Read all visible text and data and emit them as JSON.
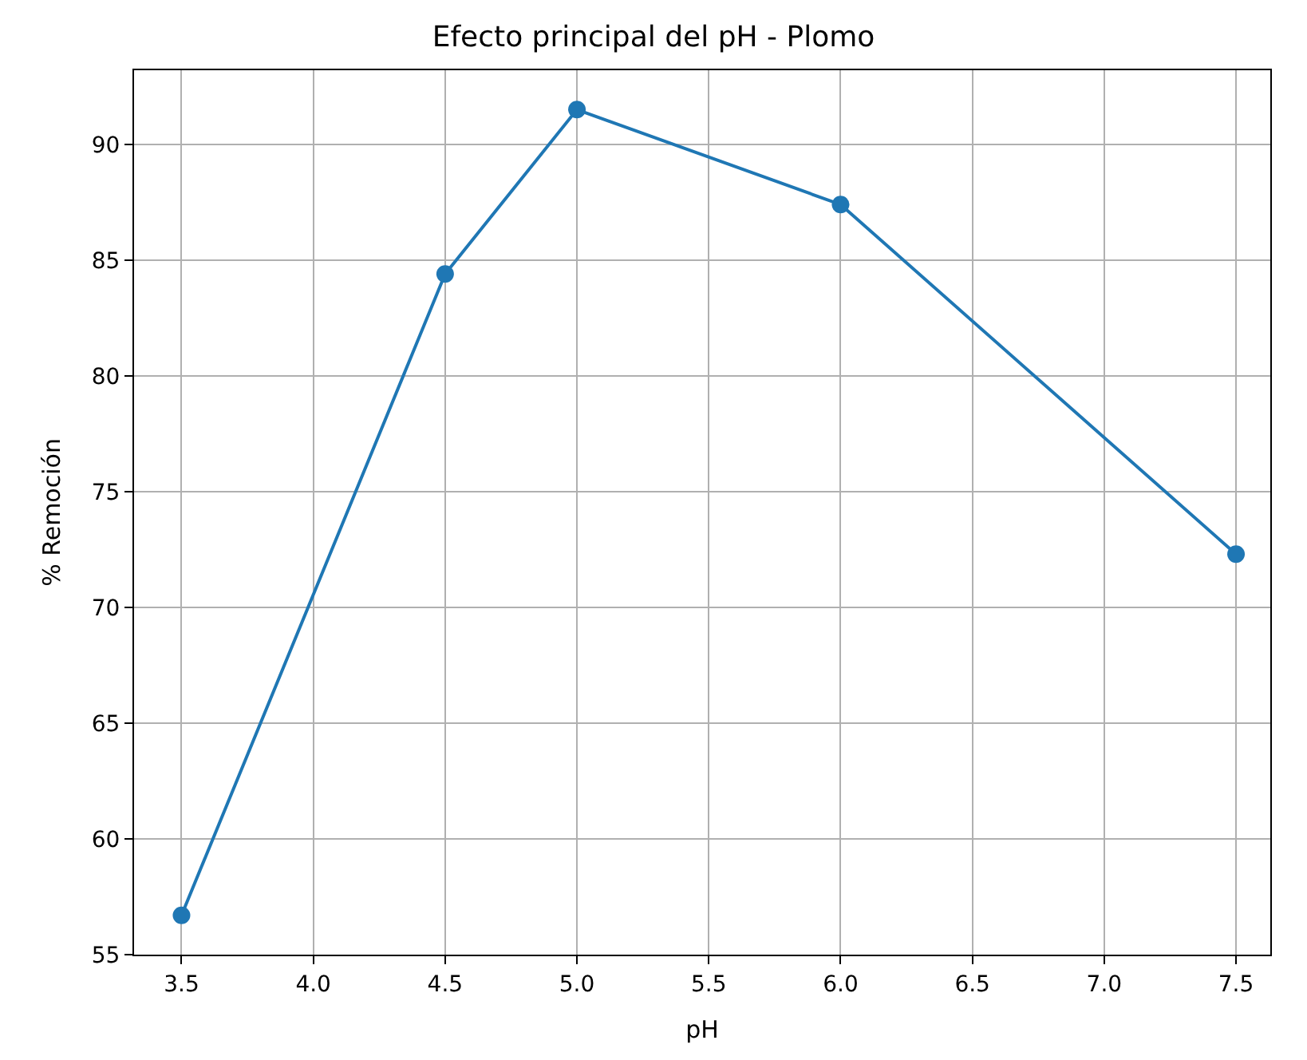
{
  "chart_data": {
    "type": "line",
    "title": "Efecto principal del pH - Plomo",
    "xlabel": "pH",
    "ylabel": "% Remoción",
    "x": [
      3.5,
      4.5,
      5.0,
      6.0,
      7.5
    ],
    "series": [
      {
        "color": "#1f77b4",
        "values": [
          56.7,
          84.4,
          91.5,
          87.4,
          72.3
        ]
      }
    ],
    "xlim": [
      3.32,
      7.63
    ],
    "ylim": [
      55,
      93.2
    ],
    "xticks": [
      {
        "value": 3.5,
        "label": "3.5"
      },
      {
        "value": 4.0,
        "label": "4.0"
      },
      {
        "value": 4.5,
        "label": "4.5"
      },
      {
        "value": 5.0,
        "label": "5.0"
      },
      {
        "value": 5.5,
        "label": "5.5"
      },
      {
        "value": 6.0,
        "label": "6.0"
      },
      {
        "value": 6.5,
        "label": "6.5"
      },
      {
        "value": 7.0,
        "label": "7.0"
      },
      {
        "value": 7.5,
        "label": "7.5"
      }
    ],
    "yticks": [
      55,
      60,
      65,
      70,
      75,
      80,
      85,
      90
    ],
    "grid": true,
    "marker": "circle",
    "line_style": "solid"
  }
}
